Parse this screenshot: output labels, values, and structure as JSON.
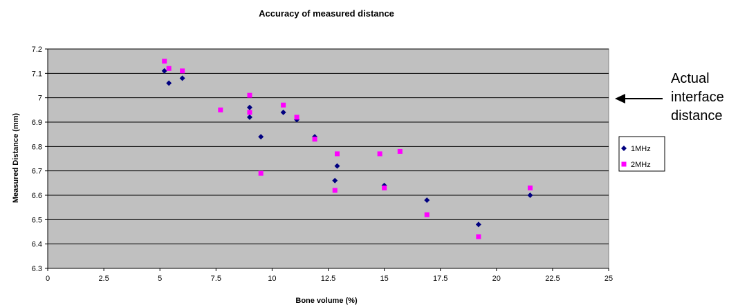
{
  "chart_data": {
    "type": "scatter",
    "title": "Accuracy of measured distance",
    "xlabel": "Bone volume (%)",
    "ylabel": "Measured Distance (mm)",
    "xlim": [
      0,
      25
    ],
    "ylim": [
      6.3,
      7.2
    ],
    "xticks": [
      "0",
      "2.5",
      "5",
      "7.5",
      "10",
      "12.5",
      "15",
      "17.5",
      "20",
      "22.5",
      "25"
    ],
    "yticks": [
      "6.3",
      "6.4",
      "6.5",
      "6.6",
      "6.7",
      "6.8",
      "6.9",
      "7",
      "7.1",
      "7.2"
    ],
    "grid": "horizontal",
    "plot_background": "#c0c0c0",
    "legend_position": "right",
    "series": [
      {
        "name": "1MHz",
        "marker": "diamond",
        "color": "#000080",
        "points": [
          [
            5.2,
            7.11
          ],
          [
            5.4,
            7.06
          ],
          [
            6.0,
            7.08
          ],
          [
            9.0,
            6.96
          ],
          [
            9.0,
            6.92
          ],
          [
            9.5,
            6.84
          ],
          [
            10.5,
            6.94
          ],
          [
            11.1,
            6.91
          ],
          [
            11.9,
            6.84
          ],
          [
            12.8,
            6.66
          ],
          [
            12.9,
            6.72
          ],
          [
            15.0,
            6.64
          ],
          [
            16.9,
            6.58
          ],
          [
            19.2,
            6.48
          ],
          [
            21.5,
            6.6
          ]
        ]
      },
      {
        "name": "2MHz",
        "marker": "square",
        "color": "#ff00ff",
        "points": [
          [
            5.2,
            7.15
          ],
          [
            5.4,
            7.12
          ],
          [
            6.0,
            7.11
          ],
          [
            7.7,
            6.95
          ],
          [
            9.0,
            7.01
          ],
          [
            9.0,
            6.94
          ],
          [
            9.5,
            6.69
          ],
          [
            10.5,
            6.97
          ],
          [
            11.1,
            6.92
          ],
          [
            11.9,
            6.83
          ],
          [
            12.8,
            6.62
          ],
          [
            12.9,
            6.77
          ],
          [
            14.8,
            6.77
          ],
          [
            15.0,
            6.63
          ],
          [
            15.7,
            6.78
          ],
          [
            16.9,
            6.52
          ],
          [
            19.2,
            6.43
          ],
          [
            21.5,
            6.63
          ]
        ]
      }
    ],
    "annotation": {
      "lines": [
        "Actual",
        "interface",
        "distance"
      ],
      "points_to_y": 7.0
    }
  }
}
